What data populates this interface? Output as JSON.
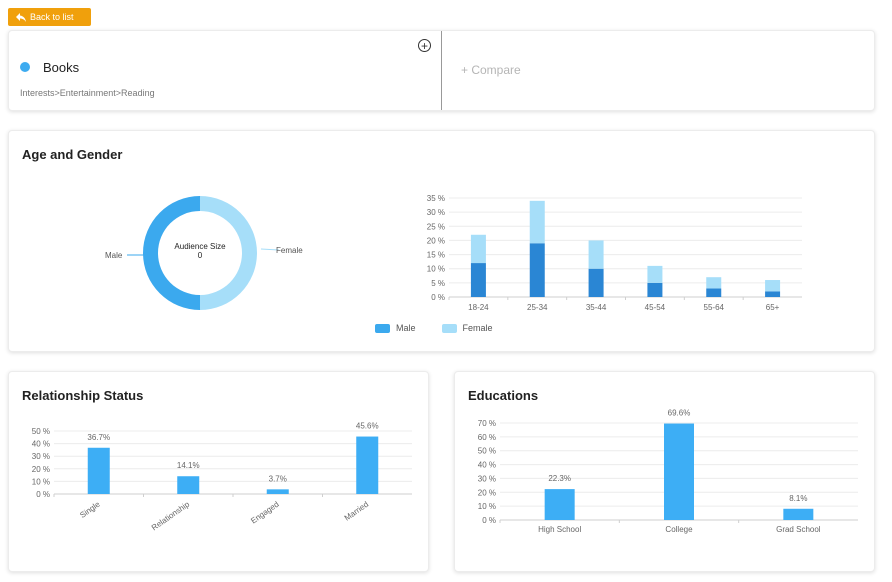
{
  "back_button": {
    "label": "Back to list"
  },
  "topic": {
    "name": "Books",
    "path": "Interests>Entertainment>Reading",
    "color": "#3dabf0"
  },
  "compare": {
    "label": "+ Compare"
  },
  "age_gender": {
    "title": "Age and Gender",
    "donut": {
      "center_label": "Audience Size",
      "center_value": "0",
      "left_label": "Male",
      "right_label": "Female"
    },
    "legend": [
      {
        "label": "Male",
        "color": "#3ba9ee"
      },
      {
        "label": "Female",
        "color": "#a6def9"
      }
    ]
  },
  "relationship": {
    "title": "Relationship Status"
  },
  "education": {
    "title": "Educations"
  },
  "chart_data": [
    {
      "type": "pie",
      "labels": [
        "Male",
        "Female"
      ],
      "values": [
        50,
        50
      ],
      "center_label": "Audience Size",
      "center_value": "0",
      "colors": [
        "#3ba9ee",
        "#a6def9"
      ]
    },
    {
      "type": "bar",
      "stacked": true,
      "categories": [
        "18-24",
        "25-34",
        "35-44",
        "45-54",
        "55-64",
        "65+"
      ],
      "series": [
        {
          "name": "Male",
          "values": [
            12,
            19,
            10,
            5,
            3,
            2
          ],
          "color": "#2a86d4"
        },
        {
          "name": "Female",
          "values": [
            10,
            15,
            10,
            6,
            4,
            4
          ],
          "color": "#a6def9"
        }
      ],
      "ylim": [
        0,
        35
      ],
      "yticks": [
        0,
        5,
        10,
        15,
        20,
        25,
        30,
        35
      ],
      "ytick_suffix": " %",
      "grid": true,
      "legend": "bottom"
    },
    {
      "type": "bar",
      "categories": [
        "Single",
        "Relationship",
        "Engaged",
        "Married"
      ],
      "values": [
        36.7,
        14.1,
        3.7,
        45.6
      ],
      "value_labels": [
        "36.7%",
        "14.1%",
        "3.7%",
        "45.6%"
      ],
      "ylim": [
        0,
        50
      ],
      "yticks": [
        0,
        10,
        20,
        30,
        40,
        50
      ],
      "ytick_suffix": " %",
      "grid": true,
      "color": "#3daef5"
    },
    {
      "type": "bar",
      "categories": [
        "High School",
        "College",
        "Grad School"
      ],
      "values": [
        22.3,
        69.6,
        8.1
      ],
      "value_labels": [
        "22.3%",
        "69.6%",
        "8.1%"
      ],
      "ylim": [
        0,
        70
      ],
      "yticks": [
        0,
        10,
        20,
        30,
        40,
        50,
        60,
        70
      ],
      "ytick_suffix": " %",
      "grid": true,
      "color": "#3daef5"
    }
  ]
}
